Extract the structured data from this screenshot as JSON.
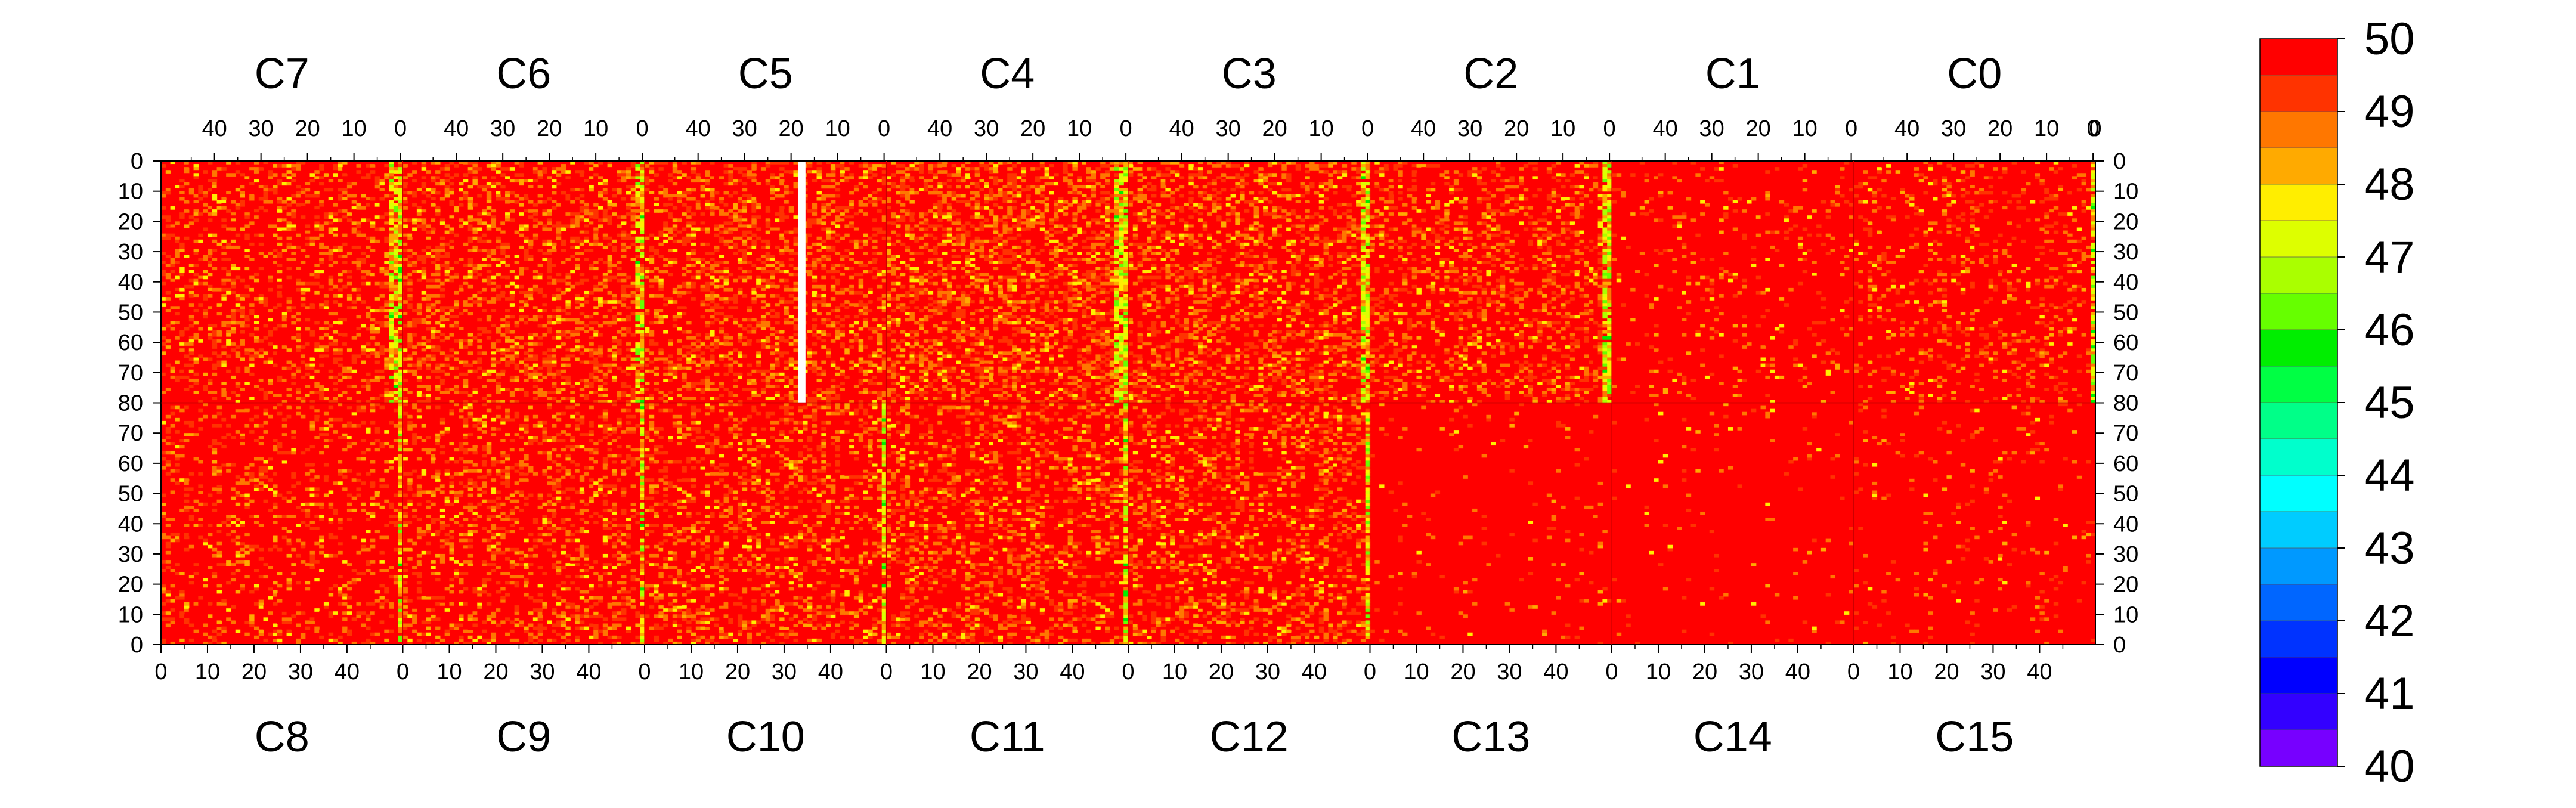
{
  "chart_data": {
    "type": "heatmap",
    "title": "",
    "colorbar": {
      "min": 40,
      "max": 50,
      "tick_labels": [
        "50",
        "49",
        "48",
        "47",
        "46",
        "45",
        "44",
        "43",
        "42",
        "41",
        "40"
      ],
      "band_colors": [
        "#ff0000",
        "#ff3300",
        "#ff7700",
        "#ffaa00",
        "#ffee00",
        "#ddff00",
        "#aaff00",
        "#66ff00",
        "#00ee00",
        "#00ff44",
        "#00ff88",
        "#00ffcc",
        "#00ffff",
        "#00ccff",
        "#0099ff",
        "#0066ff",
        "#0033ff",
        "#0000ff",
        "#3300ff",
        "#7700ff"
      ]
    },
    "top_chips": [
      "C7",
      "C6",
      "C5",
      "C4",
      "C3",
      "C2",
      "C1",
      "C0"
    ],
    "bottom_chips": [
      "C8",
      "C9",
      "C10",
      "C11",
      "C12",
      "C13",
      "C14",
      "C15"
    ],
    "top_column_ticks": [
      "40",
      "30",
      "20",
      "10",
      "0"
    ],
    "bottom_column_ticks": [
      "0",
      "10",
      "20",
      "30",
      "40"
    ],
    "top_last_tick": "0",
    "top_row_ticks": [
      "0",
      "10",
      "20",
      "30",
      "40",
      "50",
      "60",
      "70",
      "80"
    ],
    "bottom_row_ticks": [
      "70",
      "60",
      "50",
      "40",
      "30",
      "20",
      "10",
      "0"
    ],
    "columns_per_chip": 52,
    "rows_per_half": 80,
    "missing_column": {
      "chip": "C5",
      "column": 18,
      "rows": [
        0,
        80
      ]
    },
    "low_value_columns": [
      {
        "chip": "C7",
        "columns": [
          0,
          1,
          2
        ]
      },
      {
        "chip": "C6",
        "columns": [
          0,
          1
        ]
      },
      {
        "chip": "C4",
        "columns": [
          0,
          1,
          2
        ]
      },
      {
        "chip": "C3",
        "columns": [
          0,
          1
        ]
      },
      {
        "chip": "C2",
        "columns": [
          0,
          1
        ]
      },
      {
        "chip": "C0",
        "columns": [
          0
        ]
      },
      {
        "chip": "C8",
        "columns": [
          51
        ]
      },
      {
        "chip": "C9",
        "columns": [
          51
        ]
      },
      {
        "chip": "C10",
        "columns": [
          51
        ]
      },
      {
        "chip": "C11",
        "columns": [
          51
        ]
      },
      {
        "chip": "C12",
        "columns": [
          51
        ]
      }
    ],
    "typical_value": 50
  }
}
